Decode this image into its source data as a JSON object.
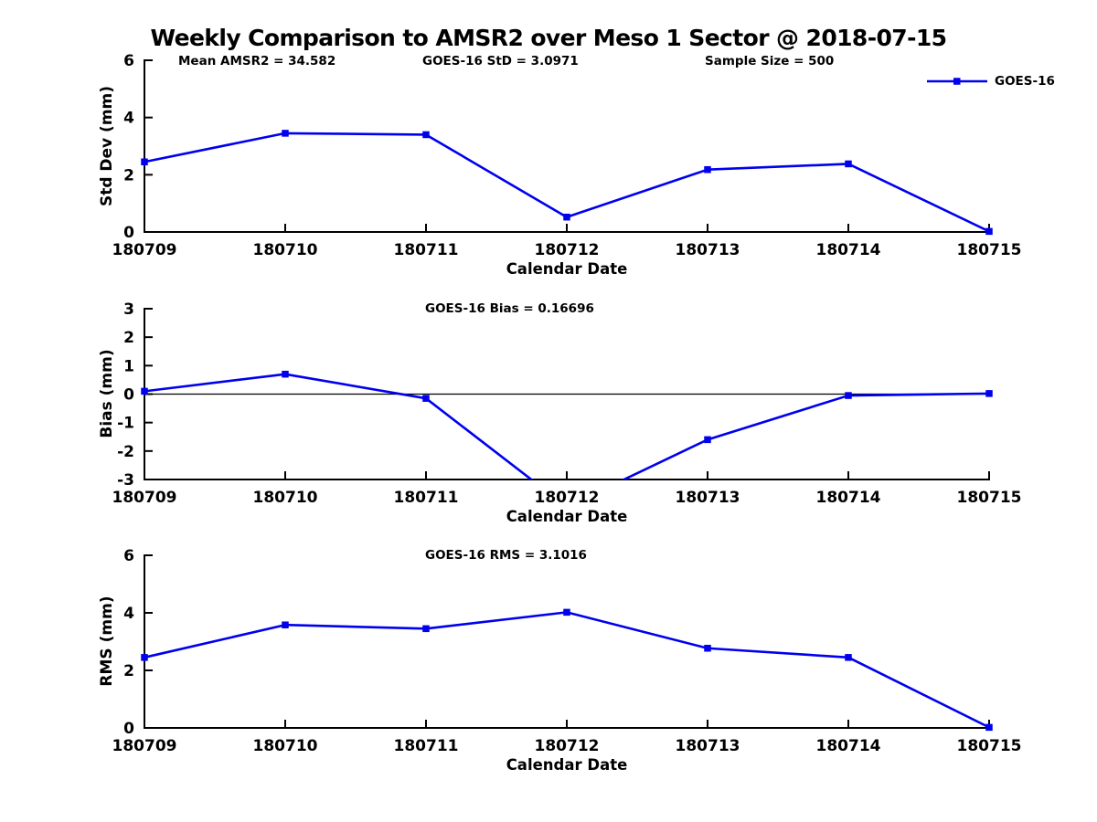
{
  "title": "Weekly Comparison to AMSR2 over Meso 1 Sector @ 2018-07-15",
  "legend": {
    "label": "GOES-16",
    "color": "#0000EE",
    "position": "top-right"
  },
  "chart_data": [
    {
      "id": "std_dev",
      "type": "line",
      "annotations": [
        "Mean AMSR2 = 34.582",
        "GOES-16 StD = 3.0971",
        "Sample Size = 500"
      ],
      "categories": [
        "180709",
        "180710",
        "180711",
        "180712",
        "180713",
        "180714",
        "180715"
      ],
      "series": [
        {
          "name": "GOES-16",
          "values": [
            2.45,
            3.45,
            3.4,
            0.52,
            2.18,
            2.38,
            0.02
          ]
        }
      ],
      "xlabel": "Calendar Date",
      "ylabel": "Std Dev (mm)",
      "ylim": [
        0,
        6
      ],
      "yticks": [
        0,
        2,
        4,
        6
      ],
      "grid": false,
      "zero_line": false,
      "line_color": "#0000EE",
      "marker": "square",
      "legend_position": "top-right"
    },
    {
      "id": "bias",
      "type": "line",
      "annotations": [
        "GOES-16 Bias  = 0.16696"
      ],
      "categories": [
        "180709",
        "180710",
        "180711",
        "180712",
        "180713",
        "180714",
        "180715"
      ],
      "series": [
        {
          "name": "GOES-16",
          "values": [
            0.1,
            0.7,
            -0.15,
            -3.96,
            -1.6,
            -0.05,
            0.02
          ]
        }
      ],
      "xlabel": "Calendar Date",
      "ylabel": "Bias (mm)",
      "ylim": [
        -3,
        3
      ],
      "yticks": [
        -3,
        -2,
        -1,
        0,
        1,
        2,
        3
      ],
      "grid": false,
      "zero_line": true,
      "line_color": "#0000EE",
      "marker": "square",
      "legend_position": "none"
    },
    {
      "id": "rms",
      "type": "line",
      "annotations": [
        "GOES-16 RMS = 3.1016"
      ],
      "categories": [
        "180709",
        "180710",
        "180711",
        "180712",
        "180713",
        "180714",
        "180715"
      ],
      "series": [
        {
          "name": "GOES-16",
          "values": [
            2.45,
            3.58,
            3.45,
            4.02,
            2.77,
            2.45,
            0.02
          ]
        }
      ],
      "xlabel": "Calendar Date",
      "ylabel": "RMS (mm)",
      "ylim": [
        0,
        6
      ],
      "yticks": [
        0,
        2,
        4,
        6
      ],
      "grid": false,
      "zero_line": false,
      "line_color": "#0000EE",
      "marker": "square",
      "legend_position": "none"
    }
  ]
}
